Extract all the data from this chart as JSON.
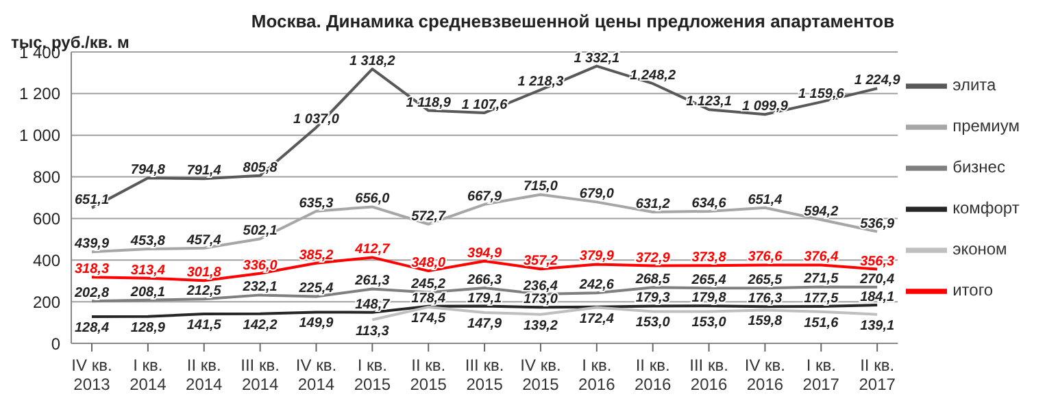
{
  "chart_data": {
    "type": "line",
    "title": "Москва. Динамика средневзвешенной цены предложения апартаментов",
    "ylabel": "тыс. руб./кв. м",
    "categories": [
      "IV кв. 2013",
      "I кв. 2014",
      "II кв. 2014",
      "III кв. 2014",
      "IV кв. 2014",
      "I кв. 2015",
      "II кв. 2015",
      "III кв. 2015",
      "IV кв. 2015",
      "I кв. 2016",
      "II кв. 2016",
      "III кв. 2016",
      "IV кв. 2016",
      "I кв. 2017",
      "II кв. 2017"
    ],
    "series": [
      {
        "name": "элита",
        "color": "#595959",
        "values": [
          651.1,
          794.8,
          791.4,
          805.8,
          1037.0,
          1318.2,
          1118.9,
          1107.6,
          1218.3,
          1332.1,
          1248.2,
          1123.1,
          1099.9,
          1159.6,
          1224.9
        ],
        "value_labels": [
          "651,1",
          "794,8",
          "791,4",
          "805,8",
          "1 037,0",
          "1 318,2",
          "1 118,9",
          "1 107,6",
          "1 218,3",
          "1 332,1",
          "1 248,2",
          "1 123,1",
          "1 099,9",
          "1 159,6",
          "1 224,9"
        ]
      },
      {
        "name": "премиум",
        "color": "#a6a6a6",
        "values": [
          439.9,
          453.8,
          457.4,
          502.1,
          635.3,
          656.0,
          572.7,
          667.9,
          715.0,
          679.0,
          631.2,
          634.6,
          651.4,
          594.2,
          536.9
        ],
        "value_labels": [
          "439,9",
          "453,8",
          "457,4",
          "502,1",
          "635,3",
          "656,0",
          "572,7",
          "667,9",
          "715,0",
          "679,0",
          "631,2",
          "634,6",
          "651,4",
          "594,2",
          "536,9"
        ]
      },
      {
        "name": "бизнес",
        "color": "#7f7f7f",
        "values": [
          202.8,
          208.1,
          212.5,
          232.1,
          225.4,
          261.3,
          245.2,
          266.3,
          236.4,
          242.6,
          268.5,
          265.4,
          265.5,
          271.5,
          270.4
        ],
        "value_labels": [
          "202,8",
          "208,1",
          "212,5",
          "232,1",
          "225,4",
          "261,3",
          "245,2",
          "266,3",
          "236,4",
          "242,6",
          "268,5",
          "265,4",
          "265,5",
          "271,5",
          "270,4"
        ]
      },
      {
        "name": "комфорт",
        "color": "#262626",
        "values": [
          128.4,
          128.9,
          141.5,
          142.2,
          149.9,
          148.7,
          178.4,
          179.1,
          173.0,
          175,
          179.3,
          179.8,
          176.3,
          177.5,
          184.1
        ],
        "value_labels": [
          "128,4",
          "128,9",
          "141,5",
          "142,2",
          "149,9",
          "148,7",
          "178,4",
          "179,1",
          "173,0",
          null,
          "179,3",
          "179,8",
          "176,3",
          "177,5",
          "184,1"
        ]
      },
      {
        "name": "эконом",
        "color": "#bfbfbf",
        "values": [
          null,
          null,
          null,
          null,
          null,
          113.3,
          174.5,
          147.9,
          139.2,
          172.4,
          153.0,
          153.0,
          159.8,
          151.6,
          139.1
        ],
        "value_labels": [
          null,
          null,
          null,
          null,
          null,
          "113,3",
          "174,5",
          "147,9",
          "139,2",
          "172,4",
          "153,0",
          "153,0",
          "159,8",
          "151,6",
          "139,1"
        ]
      },
      {
        "name": "итого",
        "color": "#ff0000",
        "values": [
          318.3,
          313.4,
          301.8,
          336.0,
          385.2,
          412.7,
          348.0,
          394.9,
          357.2,
          379.9,
          372.9,
          373.8,
          376.6,
          376.4,
          356.3
        ],
        "value_labels": [
          "318,3",
          "313,4",
          "301,8",
          "336,0",
          "385,2",
          "412,7",
          "348,0",
          "394,9",
          "357,2",
          "379,9",
          "372,9",
          "373,8",
          "376,6",
          "376,4",
          "356,3"
        ]
      }
    ],
    "ylim": [
      0,
      1400
    ],
    "yticks": [
      {
        "value": 0,
        "label": "0"
      },
      {
        "value": 200,
        "label": "200"
      },
      {
        "value": 400,
        "label": "400"
      },
      {
        "value": 600,
        "label": "600"
      },
      {
        "value": 800,
        "label": "800"
      },
      {
        "value": 1000,
        "label": "1 000"
      },
      {
        "value": 1200,
        "label": "1 200"
      },
      {
        "value": 1400,
        "label": "1 400"
      }
    ],
    "grid": "y",
    "legend": "right",
    "marker": "none",
    "line_style": "solid"
  }
}
